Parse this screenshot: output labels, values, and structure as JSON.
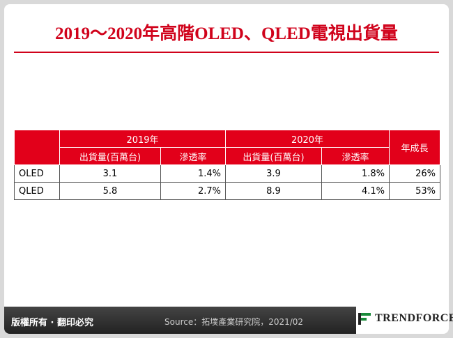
{
  "title": "2019～2020年高階OLED、QLED電視出貨量",
  "table": {
    "groups": [
      "2019年",
      "2020年"
    ],
    "growth": "年成長",
    "subheaders": [
      "出貨量(百萬台)",
      "滲透率",
      "出貨量(百萬台)",
      "滲透率"
    ],
    "rows": [
      [
        "OLED",
        "3.1",
        "1.4%",
        "3.9",
        "1.8%",
        "26%"
      ],
      [
        "QLED",
        "5.8",
        "2.7%",
        "8.9",
        "4.1%",
        "53%"
      ]
    ]
  },
  "footer": {
    "copyright": "版權所有 · 翻印必究",
    "source": "Source：拓墣產業研究院，2021/02",
    "logo": "TRENDFORCE"
  }
}
